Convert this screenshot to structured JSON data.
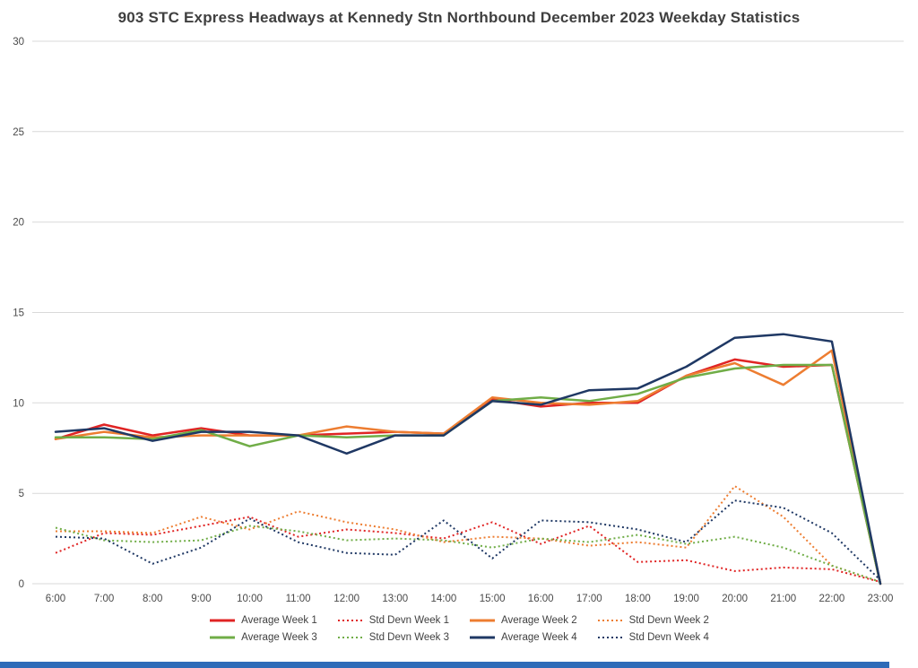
{
  "chart_data": {
    "type": "line",
    "title": "903 STC Express Headways at Kennedy Stn Northbound December 2023 Weekday Statistics",
    "xlabel": "",
    "ylabel": "",
    "ylim": [
      0,
      30
    ],
    "yticks": [
      0,
      5,
      10,
      15,
      20,
      25,
      30
    ],
    "grid": true,
    "legend_position": "bottom",
    "x_labels": [
      "6:00",
      "7:00",
      "8:00",
      "9:00",
      "10:00",
      "11:00",
      "12:00",
      "13:00",
      "14:00",
      "15:00",
      "16:00",
      "17:00",
      "18:00",
      "19:00",
      "20:00",
      "21:00",
      "22:00",
      "23:00"
    ],
    "series": [
      {
        "name": "Average Week 1",
        "color": "#e02424",
        "style": "solid",
        "values": [
          8.0,
          8.8,
          8.2,
          8.6,
          8.2,
          8.2,
          8.3,
          8.4,
          8.3,
          10.2,
          9.8,
          10.0,
          10.0,
          11.5,
          12.4,
          12.0,
          12.1,
          0
        ]
      },
      {
        "name": "Std Devn Week 1",
        "color": "#e02424",
        "style": "dotted",
        "values": [
          1.7,
          2.8,
          2.7,
          3.2,
          3.7,
          2.6,
          3.0,
          2.8,
          2.5,
          3.4,
          2.2,
          3.2,
          1.2,
          1.3,
          0.7,
          0.9,
          0.8,
          0.1
        ]
      },
      {
        "name": "Average Week 2",
        "color": "#ed7d31",
        "style": "solid",
        "values": [
          8.0,
          8.4,
          8.1,
          8.2,
          8.2,
          8.2,
          8.7,
          8.4,
          8.3,
          10.3,
          10.0,
          9.9,
          10.1,
          11.5,
          12.2,
          11.0,
          12.9,
          0
        ]
      },
      {
        "name": "Std Devn Week 2",
        "color": "#ed7d31",
        "style": "dotted",
        "values": [
          2.9,
          2.9,
          2.8,
          3.7,
          3.0,
          4.0,
          3.4,
          3.0,
          2.3,
          2.6,
          2.5,
          2.1,
          2.3,
          2.0,
          5.4,
          3.7,
          1.0,
          0.1
        ]
      },
      {
        "name": "Average Week 3",
        "color": "#70ad47",
        "style": "solid",
        "values": [
          8.1,
          8.1,
          8.0,
          8.5,
          7.6,
          8.2,
          8.1,
          8.2,
          8.2,
          10.1,
          10.3,
          10.1,
          10.5,
          11.4,
          11.9,
          12.1,
          12.1,
          0
        ]
      },
      {
        "name": "Std Devn Week 3",
        "color": "#70ad47",
        "style": "dotted",
        "values": [
          3.1,
          2.4,
          2.3,
          2.4,
          3.2,
          2.9,
          2.4,
          2.5,
          2.4,
          2.0,
          2.5,
          2.3,
          2.7,
          2.2,
          2.6,
          2.0,
          1.0,
          0.1
        ]
      },
      {
        "name": "Average Week 4",
        "color": "#1f3864",
        "style": "solid",
        "values": [
          8.4,
          8.6,
          7.9,
          8.4,
          8.4,
          8.2,
          7.2,
          8.2,
          8.2,
          10.1,
          9.9,
          10.7,
          10.8,
          12.0,
          13.6,
          13.8,
          13.4,
          0
        ]
      },
      {
        "name": "Std Devn Week 4",
        "color": "#1f3864",
        "style": "dotted",
        "values": [
          2.6,
          2.5,
          1.1,
          2.0,
          3.6,
          2.3,
          1.7,
          1.6,
          3.5,
          1.4,
          3.5,
          3.4,
          3.0,
          2.3,
          4.6,
          4.2,
          2.8,
          0.2
        ]
      }
    ]
  }
}
